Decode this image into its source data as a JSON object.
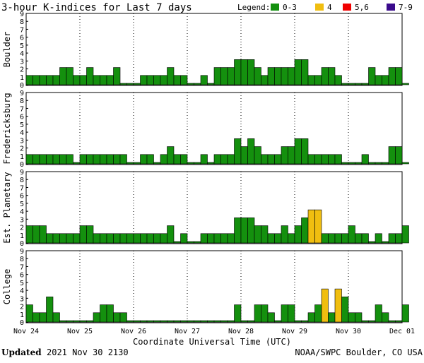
{
  "title": "3-hour K-indices for Last 7 days",
  "legend": {
    "label": "Legend:",
    "items": [
      {
        "label": "0-3",
        "color": "#14900e"
      },
      {
        "label": "4",
        "color": "#f0be10"
      },
      {
        "label": "5,6",
        "color": "#f00000"
      },
      {
        "label": "7-9",
        "color": "#3a0a8c"
      }
    ]
  },
  "footer": {
    "updated_label": "Updated",
    "updated_value": "2021 Nov 30 2130",
    "credit": "NOAA/SWPC Boulder, CO USA"
  },
  "chart_data": {
    "type": "bar",
    "xlabel": "Coordinate Universal Time (UTC)",
    "x_ticks": [
      "Nov 24",
      "Nov 25",
      "Nov 26",
      "Nov 27",
      "Nov 28",
      "Nov 29",
      "Nov 30",
      "Dec 01"
    ],
    "y_ticks": [
      "0",
      "1",
      "2",
      "3",
      "4",
      "5",
      "6",
      "7",
      "8",
      "9"
    ],
    "ylim": [
      0,
      9
    ],
    "bins_per_day": 8,
    "grid": "vertical dotted at day boundaries",
    "panels": [
      {
        "name": "Boulder",
        "values": [
          1,
          1,
          1,
          1,
          1,
          2,
          2,
          1,
          1,
          2,
          1,
          1,
          1,
          2,
          0,
          0,
          0,
          1,
          1,
          1,
          1,
          2,
          1,
          1,
          0,
          0,
          1,
          0,
          2,
          2,
          2,
          3,
          3,
          3,
          2,
          1,
          2,
          2,
          2,
          2,
          3,
          3,
          1,
          1,
          2,
          2,
          1,
          0,
          0,
          0,
          0,
          2,
          1,
          1,
          2,
          2,
          0
        ]
      },
      {
        "name": "Fredericksburg",
        "values": [
          1,
          1,
          1,
          1,
          1,
          1,
          1,
          0,
          1,
          1,
          1,
          1,
          1,
          1,
          1,
          0,
          0,
          1,
          1,
          0,
          1,
          2,
          1,
          1,
          0,
          0,
          1,
          0,
          1,
          1,
          1,
          3,
          2,
          3,
          2,
          1,
          1,
          1,
          2,
          2,
          3,
          3,
          1,
          1,
          1,
          1,
          1,
          0,
          0,
          0,
          1,
          0,
          0,
          0,
          2,
          2,
          0
        ]
      },
      {
        "name": "Est. Planetary",
        "values": [
          2,
          2,
          2,
          1,
          1,
          1,
          1,
          1,
          2,
          2,
          1,
          1,
          1,
          1,
          1,
          1,
          1,
          1,
          1,
          1,
          1,
          2,
          0,
          1,
          0,
          0,
          1,
          1,
          1,
          1,
          1,
          3,
          3,
          3,
          2,
          2,
          1,
          1,
          2,
          1,
          2,
          3,
          4,
          4,
          1,
          1,
          1,
          1,
          2,
          1,
          1,
          0,
          1,
          0,
          1,
          1,
          2
        ]
      },
      {
        "name": "College",
        "values": [
          2,
          1,
          1,
          3,
          1,
          0,
          0,
          0,
          0,
          0,
          1,
          2,
          2,
          1,
          1,
          0,
          0,
          0,
          0,
          0,
          0,
          0,
          0,
          0,
          0,
          0,
          0,
          0,
          0,
          0,
          0,
          2,
          0,
          0,
          2,
          2,
          1,
          0,
          2,
          2,
          0,
          0,
          1,
          2,
          4,
          1,
          4,
          3,
          1,
          1,
          0,
          0,
          2,
          1,
          0,
          0,
          2
        ]
      }
    ]
  }
}
